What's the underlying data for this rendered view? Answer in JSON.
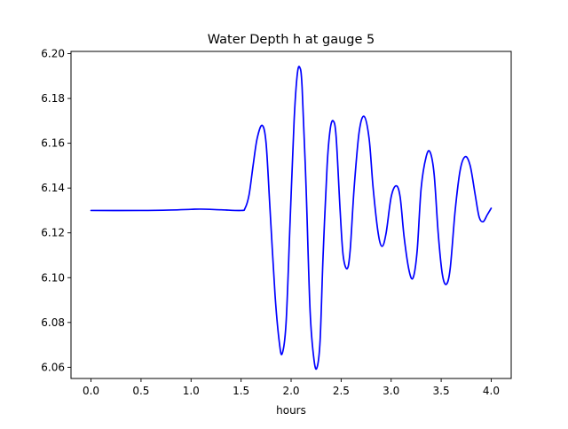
{
  "chart_data": {
    "type": "line",
    "title": "Water Depth h at gauge 5",
    "xlabel": "hours",
    "ylabel": "",
    "xlim": [
      -0.2,
      4.2
    ],
    "ylim": [
      6.055,
      6.201
    ],
    "x_ticks": [
      0.0,
      0.5,
      1.0,
      1.5,
      2.0,
      2.5,
      3.0,
      3.5,
      4.0
    ],
    "x_tick_labels": [
      "0.0",
      "0.5",
      "1.0",
      "1.5",
      "2.0",
      "2.5",
      "3.0",
      "3.5",
      "4.0"
    ],
    "y_ticks": [
      6.06,
      6.08,
      6.1,
      6.12,
      6.14,
      6.16,
      6.18,
      6.2
    ],
    "y_tick_labels": [
      "6.06",
      "6.08",
      "6.10",
      "6.12",
      "6.14",
      "6.16",
      "6.18",
      "6.20"
    ],
    "grid": false,
    "series": [
      {
        "color": "#0000ff",
        "points": [
          [
            0.0,
            6.13
          ],
          [
            0.5,
            6.13
          ],
          [
            0.8,
            6.1302
          ],
          [
            1.0,
            6.1305
          ],
          [
            1.1,
            6.1306
          ],
          [
            1.3,
            6.1303
          ],
          [
            1.5,
            6.13
          ],
          [
            1.54,
            6.131
          ],
          [
            1.58,
            6.137
          ],
          [
            1.62,
            6.15
          ],
          [
            1.66,
            6.162
          ],
          [
            1.71,
            6.168
          ],
          [
            1.75,
            6.16
          ],
          [
            1.79,
            6.13
          ],
          [
            1.84,
            6.092
          ],
          [
            1.88,
            6.072
          ],
          [
            1.91,
            6.066
          ],
          [
            1.95,
            6.08
          ],
          [
            1.99,
            6.125
          ],
          [
            2.03,
            6.17
          ],
          [
            2.06,
            6.19
          ],
          [
            2.085,
            6.194
          ],
          [
            2.11,
            6.185
          ],
          [
            2.15,
            6.14
          ],
          [
            2.19,
            6.085
          ],
          [
            2.23,
            6.063
          ],
          [
            2.26,
            6.06
          ],
          [
            2.29,
            6.072
          ],
          [
            2.32,
            6.11
          ],
          [
            2.36,
            6.15
          ],
          [
            2.39,
            6.166
          ],
          [
            2.42,
            6.17
          ],
          [
            2.45,
            6.163
          ],
          [
            2.49,
            6.13
          ],
          [
            2.52,
            6.11
          ],
          [
            2.56,
            6.104
          ],
          [
            2.59,
            6.112
          ],
          [
            2.63,
            6.14
          ],
          [
            2.68,
            6.165
          ],
          [
            2.73,
            6.172
          ],
          [
            2.78,
            6.162
          ],
          [
            2.82,
            6.14
          ],
          [
            2.87,
            6.12
          ],
          [
            2.91,
            6.114
          ],
          [
            2.95,
            6.12
          ],
          [
            3.0,
            6.136
          ],
          [
            3.05,
            6.141
          ],
          [
            3.09,
            6.136
          ],
          [
            3.13,
            6.118
          ],
          [
            3.18,
            6.103
          ],
          [
            3.22,
            6.1
          ],
          [
            3.26,
            6.112
          ],
          [
            3.3,
            6.14
          ],
          [
            3.35,
            6.154
          ],
          [
            3.39,
            6.156
          ],
          [
            3.43,
            6.146
          ],
          [
            3.47,
            6.12
          ],
          [
            3.51,
            6.102
          ],
          [
            3.55,
            6.097
          ],
          [
            3.59,
            6.104
          ],
          [
            3.64,
            6.13
          ],
          [
            3.69,
            6.148
          ],
          [
            3.74,
            6.154
          ],
          [
            3.79,
            6.15
          ],
          [
            3.84,
            6.137
          ],
          [
            3.88,
            6.127
          ],
          [
            3.92,
            6.125
          ],
          [
            3.96,
            6.128
          ],
          [
            4.0,
            6.131
          ]
        ]
      }
    ]
  }
}
